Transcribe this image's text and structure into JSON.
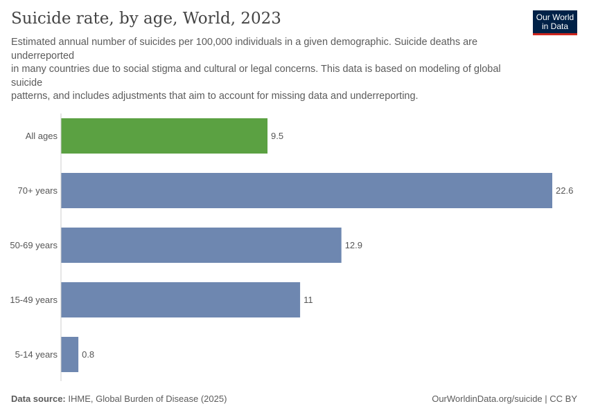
{
  "title": "Suicide rate, by age, World, 2023",
  "subtitle": "Estimated annual number of suicides per 100,000 individuals in a given demographic. Suicide deaths are underreported\nin many countries due to social stigma and cultural or legal concerns. This data is based on modeling of global suicide\npatterns, and includes adjustments that aim to account for missing data and underreporting.",
  "logo": "Our World in Data",
  "footer": {
    "source_label": "Data source:",
    "source": "IHME, Global Burden of Disease (2025)",
    "credit": "OurWorldinData.org/suicide | CC BY"
  },
  "chart_data": {
    "type": "bar",
    "orientation": "horizontal",
    "categories": [
      "All ages",
      "70+ years",
      "50-69 years",
      "15-49 years",
      "5-14 years"
    ],
    "values": [
      9.5,
      22.6,
      12.9,
      11,
      0.8
    ],
    "value_labels": [
      "9.5",
      "22.6",
      "12.9",
      "11",
      "0.8"
    ],
    "colors": [
      "#5ba142",
      "#6e87b0",
      "#6e87b0",
      "#6e87b0",
      "#6e87b0"
    ],
    "xlim": [
      0,
      22.6
    ],
    "grid": false
  }
}
